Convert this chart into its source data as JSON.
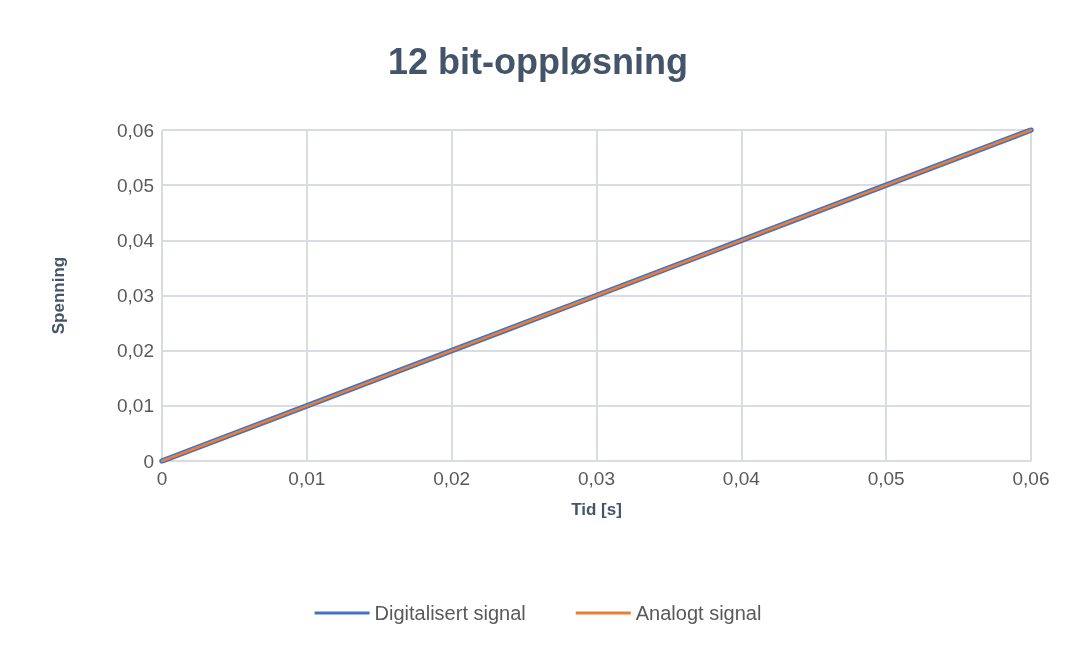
{
  "chart_data": {
    "type": "line",
    "title": "12 bit-oppløsning",
    "xlabel": "Tid [s]",
    "ylabel": "Spenning",
    "x": [
      0,
      0.01,
      0.02,
      0.03,
      0.04,
      0.05,
      0.06
    ],
    "series": [
      {
        "name": "Digitalisert signal",
        "color": "#4472c4",
        "values": [
          0,
          0.01,
          0.02,
          0.03,
          0.04,
          0.05,
          0.06
        ]
      },
      {
        "name": "Analogt signal",
        "color": "#ed7d31",
        "values": [
          0,
          0.01,
          0.02,
          0.03,
          0.04,
          0.05,
          0.06
        ]
      }
    ],
    "xlim": [
      0,
      0.06
    ],
    "ylim": [
      0,
      0.06
    ],
    "xticks": [
      0,
      {
        "value": 0.01,
        "label": "0,01"
      },
      {
        "value": 0.02,
        "label": "0,02"
      },
      {
        "value": 0.03,
        "label": "0,03"
      },
      {
        "value": 0.04,
        "label": "0,04"
      },
      {
        "value": 0.05,
        "label": "0,05"
      },
      {
        "value": 0.06,
        "label": "0,06"
      }
    ],
    "yticks": [
      0,
      {
        "value": 0.01,
        "label": "0,01"
      },
      {
        "value": 0.02,
        "label": "0,02"
      },
      {
        "value": 0.03,
        "label": "0,03"
      },
      {
        "value": 0.04,
        "label": "0,04"
      },
      {
        "value": 0.05,
        "label": "0,05"
      },
      {
        "value": 0.06,
        "label": "0,06"
      }
    ],
    "grid": true,
    "legend": "bottom",
    "marker": "none",
    "line_style": "solid"
  }
}
